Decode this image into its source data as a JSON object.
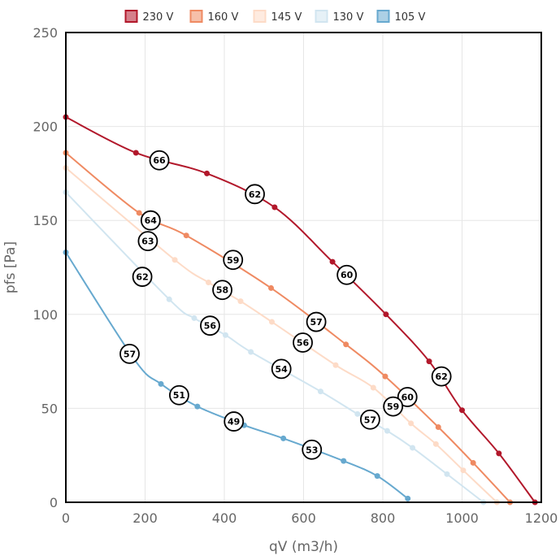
{
  "chart_data": {
    "type": "line",
    "title": "",
    "xlabel": "qV (m3/h)",
    "ylabel": "pfs [Pa]",
    "xlim": [
      0,
      1200
    ],
    "ylim": [
      0,
      250
    ],
    "x_ticks": [
      0,
      200,
      400,
      600,
      800,
      1000,
      1200
    ],
    "y_ticks": [
      0,
      50,
      100,
      150,
      200,
      250
    ],
    "grid": true,
    "legend_position": "top",
    "series": [
      {
        "name": "230 V",
        "color": "#b2182b",
        "points": [
          [
            0,
            205
          ],
          [
            177,
            186
          ],
          [
            356,
            175
          ],
          [
            527,
            157
          ],
          [
            673,
            128
          ],
          [
            808,
            100
          ],
          [
            917,
            75
          ],
          [
            1000,
            49
          ],
          [
            1093,
            26
          ],
          [
            1184,
            0
          ]
        ],
        "annotations": [
          {
            "x": 236,
            "y": 182,
            "label": "66"
          },
          {
            "x": 477,
            "y": 164,
            "label": "62"
          },
          {
            "x": 709,
            "y": 121,
            "label": "60"
          },
          {
            "x": 948,
            "y": 67,
            "label": "62"
          }
        ]
      },
      {
        "name": "160 V",
        "color": "#ef8a62",
        "points": [
          [
            0,
            186
          ],
          [
            185,
            154
          ],
          [
            304,
            142
          ],
          [
            518,
            114
          ],
          [
            707,
            84
          ],
          [
            806,
            67
          ],
          [
            940,
            40
          ],
          [
            1028,
            21
          ],
          [
            1121,
            0
          ]
        ],
        "annotations": [
          {
            "x": 214,
            "y": 150,
            "label": "64"
          },
          {
            "x": 422,
            "y": 129,
            "label": "59"
          },
          {
            "x": 632,
            "y": 96,
            "label": "57"
          },
          {
            "x": 862,
            "y": 56,
            "label": "60"
          }
        ]
      },
      {
        "name": "145 V",
        "color": "#fddbc7",
        "points": [
          [
            0,
            178
          ],
          [
            275,
            129
          ],
          [
            360,
            117
          ],
          [
            441,
            107
          ],
          [
            520,
            96
          ],
          [
            681,
            73
          ],
          [
            776,
            61
          ],
          [
            871,
            42
          ],
          [
            934,
            31
          ],
          [
            1003,
            17
          ],
          [
            1088,
            0
          ]
        ],
        "annotations": [
          {
            "x": 207,
            "y": 139,
            "label": "63"
          },
          {
            "x": 395,
            "y": 113,
            "label": "58"
          },
          {
            "x": 598,
            "y": 85,
            "label": "56"
          },
          {
            "x": 826,
            "y": 51,
            "label": "59"
          }
        ]
      },
      {
        "name": "130 V",
        "color": "#d1e5f0",
        "points": [
          [
            0,
            165
          ],
          [
            261,
            108
          ],
          [
            324,
            98
          ],
          [
            403,
            89
          ],
          [
            467,
            80
          ],
          [
            643,
            59
          ],
          [
            736,
            47
          ],
          [
            811,
            38
          ],
          [
            875,
            29
          ],
          [
            962,
            15
          ],
          [
            1054,
            0
          ]
        ],
        "annotations": [
          {
            "x": 193,
            "y": 120,
            "label": "62"
          },
          {
            "x": 364,
            "y": 94,
            "label": "56"
          },
          {
            "x": 544,
            "y": 71,
            "label": "54"
          },
          {
            "x": 768,
            "y": 44,
            "label": "57"
          }
        ]
      },
      {
        "name": "105 V",
        "color": "#67a9cf",
        "points": [
          [
            0,
            133
          ],
          [
            173,
            76
          ],
          [
            240,
            63
          ],
          [
            332,
            51
          ],
          [
            450,
            41
          ],
          [
            549,
            34
          ],
          [
            701,
            22
          ],
          [
            786,
            14
          ],
          [
            863,
            2
          ]
        ],
        "annotations": [
          {
            "x": 161,
            "y": 79,
            "label": "57"
          },
          {
            "x": 286,
            "y": 57,
            "label": "51"
          },
          {
            "x": 424,
            "y": 43,
            "label": "49"
          },
          {
            "x": 621,
            "y": 28,
            "label": "53"
          }
        ]
      }
    ]
  }
}
